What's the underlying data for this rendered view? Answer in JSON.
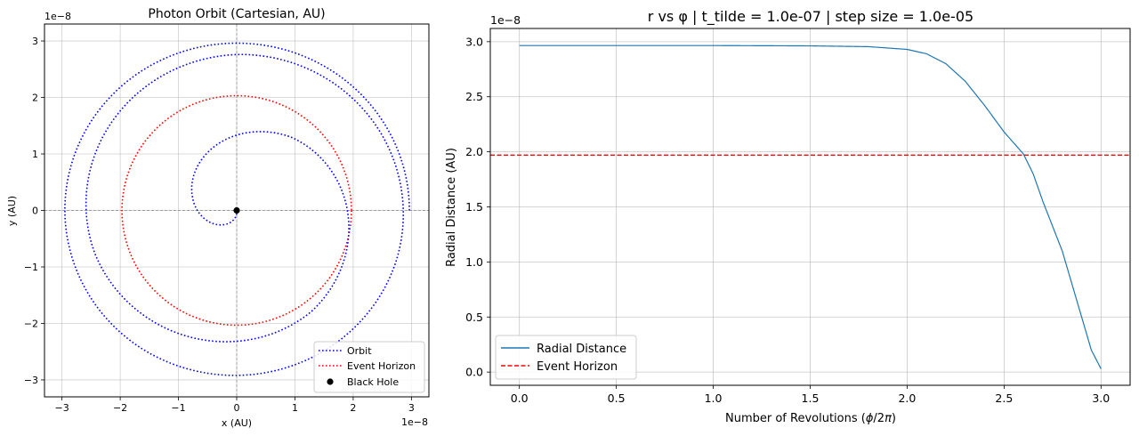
{
  "chart_data": [
    {
      "type": "line",
      "title": "Photon Orbit (Cartesian, AU)",
      "xlabel": "x (AU)",
      "ylabel": "y (AU)",
      "x_offset_text": "1e−8",
      "y_offset_text": "1e−8",
      "xlim": [
        -3.3,
        3.3
      ],
      "ylim": [
        -3.3,
        3.3
      ],
      "xticks": [
        -3,
        -2,
        -1,
        0,
        1,
        2,
        3
      ],
      "yticks": [
        -3,
        -2,
        -1,
        0,
        1,
        2,
        3
      ],
      "xtick_labels": [
        "−3",
        "−2",
        "−1",
        "0",
        "1",
        "2",
        "3"
      ],
      "ytick_labels": [
        "−3",
        "−2",
        "−1",
        "0",
        "1",
        "2",
        "3"
      ],
      "grid": true,
      "legend_position": "lower-right",
      "orbit": {
        "name": "Orbit",
        "color": "#0000ff",
        "style": "dotted",
        "spiral_r": [
          2.965,
          2.965,
          2.96,
          2.94,
          2.88,
          2.76,
          2.55,
          2.2,
          1.6,
          0.8,
          0.05
        ],
        "spiral_revolutions": [
          0,
          0.3,
          0.6,
          0.9,
          1.2,
          1.5,
          1.8,
          2.1,
          2.4,
          2.7,
          3.0
        ],
        "turns_shown": 2.75
      },
      "event_horizon": {
        "name": "Event Horizon",
        "color": "#ff0000",
        "style": "dotted",
        "radius": 1.97
      },
      "black_hole": {
        "name": "Black Hole",
        "color": "#000000",
        "x": 0,
        "y": 0
      }
    },
    {
      "type": "line",
      "title": "r vs φ | t_tilde = 1.0e-07 | step size = 1.0e-05",
      "xlabel": "Number of Revolutions (ϕ/2π)",
      "ylabel": "Radial Distance (AU)",
      "y_offset_text": "1e−8",
      "xlim": [
        -0.15,
        3.15
      ],
      "ylim": [
        -0.12,
        3.12
      ],
      "xticks": [
        0.0,
        0.5,
        1.0,
        1.5,
        2.0,
        2.5,
        3.0
      ],
      "yticks": [
        0.0,
        0.5,
        1.0,
        1.5,
        2.0,
        2.5,
        3.0
      ],
      "xtick_labels": [
        "0.0",
        "0.5",
        "1.0",
        "1.5",
        "2.0",
        "2.5",
        "3.0"
      ],
      "ytick_labels": [
        "0.0",
        "0.5",
        "1.0",
        "1.5",
        "2.0",
        "2.5",
        "3.0"
      ],
      "grid": true,
      "legend_position": "lower-left",
      "series": [
        {
          "name": "Radial Distance",
          "color": "#1f77b4",
          "style": "solid",
          "x": [
            0.0,
            0.5,
            1.0,
            1.5,
            1.8,
            2.0,
            2.1,
            2.2,
            2.3,
            2.4,
            2.5,
            2.6,
            2.65,
            2.7,
            2.8,
            2.9,
            2.95,
            3.0
          ],
          "y": [
            2.965,
            2.965,
            2.965,
            2.962,
            2.955,
            2.93,
            2.89,
            2.8,
            2.64,
            2.42,
            2.18,
            1.98,
            1.8,
            1.55,
            1.1,
            0.5,
            0.2,
            0.03
          ]
        },
        {
          "name": "Event Horizon",
          "color": "#ff0000",
          "style": "dashed",
          "y_constant": 1.97
        }
      ]
    }
  ]
}
